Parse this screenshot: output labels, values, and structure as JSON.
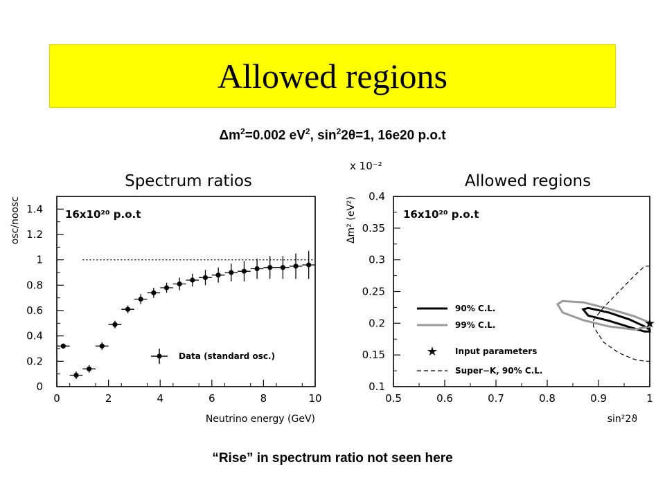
{
  "slide": {
    "title": "Allowed regions",
    "subtitle_parts": {
      "delta": "Δ",
      "m": "m",
      "exp2": "2",
      "eq": "=0.002 eV",
      "exp2b": "2",
      "sep": ", sin",
      "exp2c": "2",
      "two_theta": "2θ",
      "rest": "=1, 16e20 p.o.t"
    },
    "caption": "“Rise” in spectrum ratio not seen here"
  },
  "chart_data": [
    {
      "type": "scatter",
      "title": "Spectrum ratios",
      "xlabel": "Neutrino energy (GeV)",
      "ylabel": "osc/noosc",
      "xlim": [
        0,
        10
      ],
      "ylim": [
        0,
        1.5
      ],
      "x_ticks": [
        "0",
        "2",
        "4",
        "6",
        "8",
        "10"
      ],
      "y_ticks": [
        "0",
        "0.2",
        "0.4",
        "0.6",
        "0.8",
        "1",
        "1.2",
        "1.4"
      ],
      "annotation": "16x10²⁰ p.o.t",
      "reference_line": 1,
      "legend": "Data (standard osc.)",
      "series": [
        {
          "name": "Data (standard osc.)",
          "x": [
            0.25,
            0.75,
            1.25,
            1.75,
            2.25,
            2.75,
            3.25,
            3.75,
            4.25,
            4.75,
            5.25,
            5.75,
            6.25,
            6.75,
            7.25,
            7.75,
            8.25,
            8.75,
            9.25,
            9.75
          ],
          "y": [
            0.32,
            0.09,
            0.14,
            0.32,
            0.49,
            0.61,
            0.69,
            0.74,
            0.78,
            0.81,
            0.84,
            0.86,
            0.88,
            0.9,
            0.91,
            0.93,
            0.94,
            0.94,
            0.95,
            0.96
          ],
          "yerr": [
            0.02,
            0.03,
            0.03,
            0.03,
            0.03,
            0.03,
            0.04,
            0.04,
            0.04,
            0.05,
            0.05,
            0.06,
            0.06,
            0.07,
            0.08,
            0.08,
            0.09,
            0.09,
            0.1,
            0.11
          ]
        }
      ]
    },
    {
      "type": "line",
      "title": "Allowed regions",
      "xlabel": "sin²2ϑ",
      "ylabel": "Δm² (eV²)",
      "y_multiplier": "x 10⁻²",
      "xlim": [
        0.5,
        1.0
      ],
      "ylim": [
        0.1,
        0.4
      ],
      "x_ticks": [
        "0.5",
        "0.6",
        "0.7",
        "0.8",
        "0.9",
        "1"
      ],
      "y_ticks": [
        "0.1",
        "0.15",
        "0.2",
        "0.25",
        "0.3",
        "0.35",
        "0.4"
      ],
      "annotation": "16x10²⁰ p.o.t",
      "legend": [
        "90% C.L.",
        "99% C.L.",
        "Input parameters",
        "Super−K, 90% C.L."
      ],
      "series": [
        {
          "name": "90% C.L.",
          "color": "#000000",
          "x": [
            0.87,
            0.88,
            0.92,
            0.96,
            0.99,
            1.0,
            1.0,
            0.99,
            0.96,
            0.92,
            0.88,
            0.87
          ],
          "y": [
            0.222,
            0.224,
            0.217,
            0.206,
            0.195,
            0.19,
            0.187,
            0.187,
            0.194,
            0.204,
            0.212,
            0.222
          ]
        },
        {
          "name": "99% C.L.",
          "color": "#999999",
          "x": [
            0.82,
            0.83,
            0.87,
            0.92,
            0.97,
            1.0,
            1.0,
            0.97,
            0.92,
            0.87,
            0.83,
            0.82
          ],
          "y": [
            0.23,
            0.235,
            0.233,
            0.223,
            0.211,
            0.201,
            0.195,
            0.19,
            0.195,
            0.205,
            0.217,
            0.23
          ]
        },
        {
          "name": "Input parameters",
          "x": [
            1.0
          ],
          "y": [
            0.2
          ]
        },
        {
          "name": "Super−K, 90% C.L.",
          "color": "#000000",
          "style": "dashed",
          "x": [
            1.0,
            0.99,
            0.97,
            0.94,
            0.91,
            0.89,
            0.89,
            0.91,
            0.94,
            0.97,
            0.99,
            1.0
          ],
          "y": [
            0.29,
            0.29,
            0.275,
            0.25,
            0.225,
            0.205,
            0.195,
            0.17,
            0.153,
            0.143,
            0.14,
            0.14
          ]
        }
      ]
    }
  ]
}
